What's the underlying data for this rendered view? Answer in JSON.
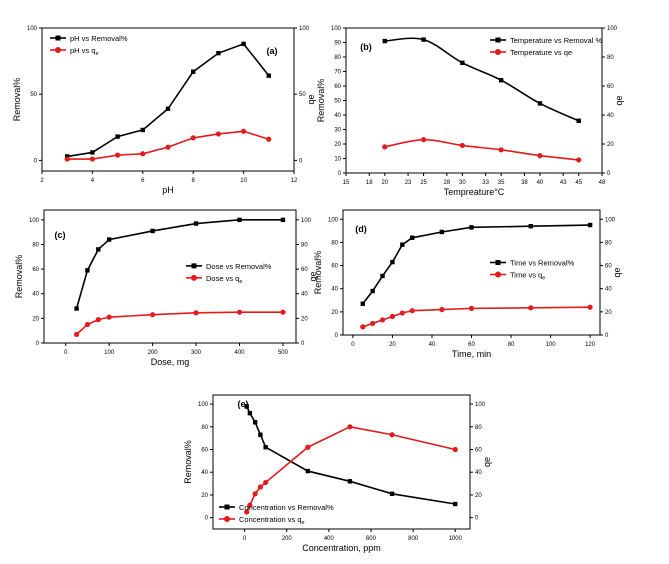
{
  "figure": {
    "description_visible": false
  },
  "chart_data": [
    {
      "type": "line",
      "panel_label": "(a)",
      "xlabel": "pH",
      "ylabel": "Removal%",
      "ylabel_right": "qe",
      "xlim": [
        2,
        12
      ],
      "ylim": [
        -8,
        100
      ],
      "ylim_right": [
        -8,
        100
      ],
      "xticks": [
        "2",
        "4",
        "6",
        "8",
        "10",
        "12"
      ],
      "yticks": [
        "0",
        "50",
        "100"
      ],
      "yticks_right": [
        "0",
        "50",
        "100"
      ],
      "legend_pos": "top-left",
      "series": [
        {
          "name": "pH vs Removal%",
          "legend_text": "pH vs Removal%",
          "legend_sub": "",
          "color": "#000000",
          "marker": "square",
          "x": [
            3,
            4,
            5,
            6,
            7,
            8,
            9,
            10,
            11
          ],
          "y": [
            3,
            6,
            18,
            23,
            39,
            67,
            81,
            88,
            64
          ]
        },
        {
          "name": "pH vs qe",
          "legend_text": "pH vs q",
          "legend_sub": "e",
          "color": "#e41a1c",
          "marker": "circle",
          "x": [
            3,
            4,
            5,
            6,
            7,
            8,
            9,
            10,
            11
          ],
          "y": [
            1,
            1,
            4,
            5,
            10,
            17,
            20,
            22,
            16
          ]
        }
      ]
    },
    {
      "type": "line",
      "panel_label": "(b)",
      "xlabel": "Tempreature°C",
      "ylabel": "Removal%",
      "ylabel_right": "qe",
      "xlim": [
        15,
        48
      ],
      "ylim": [
        0,
        100
      ],
      "ylim_right": [
        0,
        100
      ],
      "xticks": [
        "15",
        "18",
        "20",
        "23",
        "25",
        "28",
        "30",
        "33",
        "35",
        "38",
        "40",
        "43",
        "45",
        "48"
      ],
      "yticks": [
        "0",
        "10",
        "20",
        "30",
        "40",
        "50",
        "60",
        "70",
        "80",
        "90",
        "100"
      ],
      "yticks_right": [
        "0",
        "20",
        "40",
        "60",
        "80",
        "100"
      ],
      "legend_pos": "top-right",
      "series": [
        {
          "name": "Temperature vs Removal %",
          "legend_text": "Temperature vs Removal %",
          "legend_sub": "",
          "color": "#000000",
          "marker": "square",
          "x": [
            20,
            25,
            30,
            35,
            40,
            45
          ],
          "y": [
            91,
            92,
            76,
            64,
            48,
            36
          ],
          "smooth": true
        },
        {
          "name": "Temperature vs qe",
          "legend_text": "Temperature vs qe",
          "legend_sub": "",
          "color": "#e41a1c",
          "marker": "circle",
          "x": [
            20,
            25,
            30,
            35,
            40,
            45
          ],
          "y": [
            18,
            23,
            19,
            16,
            12,
            9
          ],
          "smooth": true
        }
      ]
    },
    {
      "type": "line",
      "panel_label": "(c)",
      "xlabel": "Dose, mg",
      "ylabel": "Removal%",
      "ylabel_right": "qe",
      "xlim": [
        -50,
        530
      ],
      "ylim": [
        0,
        108
      ],
      "ylim_right": [
        0,
        108
      ],
      "xticks": [
        "0",
        "100",
        "200",
        "300",
        "400",
        "500"
      ],
      "yticks": [
        "0",
        "20",
        "40",
        "60",
        "80",
        "100"
      ],
      "yticks_right": [
        "0",
        "20",
        "40",
        "60",
        "80",
        "100"
      ],
      "legend_pos": "center-right",
      "series": [
        {
          "name": "Dose vs Removal%",
          "legend_text": "Dose vs Removal%",
          "legend_sub": "",
          "color": "#000000",
          "marker": "square",
          "x": [
            25,
            50,
            75,
            100,
            200,
            300,
            400,
            500
          ],
          "y": [
            28,
            59,
            76,
            84,
            91,
            97,
            100,
            100
          ]
        },
        {
          "name": "Dose vs qe",
          "legend_text": "Dose vs q",
          "legend_sub": "e",
          "color": "#e41a1c",
          "marker": "circle",
          "x": [
            25,
            50,
            75,
            100,
            200,
            300,
            400,
            500
          ],
          "y": [
            7,
            15,
            19,
            21,
            23,
            24.5,
            25,
            25
          ]
        }
      ]
    },
    {
      "type": "line",
      "panel_label": "(d)",
      "xlabel": "Time, min",
      "ylabel": "Removal%",
      "ylabel_right": "qe",
      "xlim": [
        -5,
        125
      ],
      "ylim": [
        0,
        108
      ],
      "ylim_right": [
        0,
        108
      ],
      "xticks": [
        "0",
        "20",
        "40",
        "60",
        "80",
        "100",
        "120"
      ],
      "yticks": [
        "0",
        "20",
        "40",
        "60",
        "80",
        "100"
      ],
      "yticks_right": [
        "0",
        "20",
        "40",
        "60",
        "80",
        "100"
      ],
      "legend_pos": "center-right",
      "series": [
        {
          "name": "Time vs Removal%",
          "legend_text": "Time vs  Removal%",
          "legend_sub": "",
          "color": "#000000",
          "marker": "square",
          "x": [
            5,
            10,
            15,
            20,
            25,
            30,
            45,
            60,
            90,
            120
          ],
          "y": [
            27,
            38,
            51,
            63,
            78,
            84,
            89,
            93,
            94,
            95
          ]
        },
        {
          "name": "Time vs qe",
          "legend_text": "Time vs q",
          "legend_sub": "e",
          "color": "#e41a1c",
          "marker": "circle",
          "x": [
            5,
            10,
            15,
            20,
            25,
            30,
            45,
            60,
            90,
            120
          ],
          "y": [
            7,
            10,
            13,
            16,
            19,
            21,
            22,
            23,
            23.5,
            24
          ]
        }
      ]
    },
    {
      "type": "line",
      "panel_label": "(e)",
      "xlabel": "Concentration, ppm",
      "ylabel": "Removal%",
      "ylabel_right": "qe",
      "xlim": [
        -150,
        1070
      ],
      "ylim": [
        -10,
        108
      ],
      "ylim_right": [
        -10,
        108
      ],
      "xticks": [
        "0",
        "200",
        "400",
        "600",
        "800",
        "1000"
      ],
      "yticks": [
        "0",
        "20",
        "40",
        "60",
        "80",
        "100"
      ],
      "yticks_right": [
        "0",
        "20",
        "40",
        "60",
        "80",
        "100"
      ],
      "legend_pos": "bottom-left",
      "series": [
        {
          "name": "Concentration vs Removal%",
          "legend_text": "Concentration vs Removal%",
          "legend_sub": "",
          "color": "#000000",
          "marker": "square",
          "x": [
            10,
            25,
            50,
            75,
            100,
            300,
            500,
            700,
            1000
          ],
          "y": [
            98,
            92,
            84,
            73,
            62,
            41,
            32,
            21,
            12
          ]
        },
        {
          "name": "Concentration vs qe",
          "legend_text": "Concentration vs q",
          "legend_sub": "e",
          "color": "#e41a1c",
          "marker": "circle",
          "x": [
            10,
            25,
            50,
            75,
            100,
            300,
            500,
            700,
            1000
          ],
          "y": [
            5,
            11,
            21,
            27,
            31,
            62,
            80,
            73,
            60
          ]
        }
      ]
    }
  ]
}
